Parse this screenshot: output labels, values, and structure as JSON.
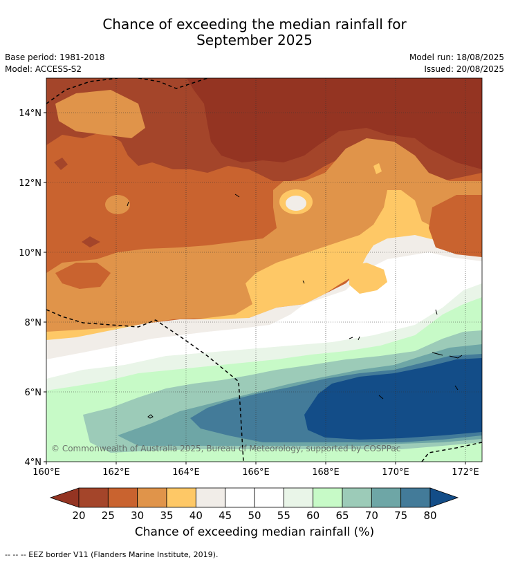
{
  "title_line1": "Chance of exceeding the median rainfall for",
  "title_line2": "September 2025",
  "base_period": "Base period: 1981-2018",
  "model": "Model: ACCESS-S2",
  "model_run": "Model run: 18/08/2025",
  "issued": "Issued: 20/08/2025",
  "copyright": "© Commonwealth of Australia 2025, Bureau of Meteorology, supported by COSPPac",
  "colorbar_label": "Chance of exceeding median rainfall (%)",
  "footnote": "--  --  -- EEZ border V11 (Flanders Marine Institute, 2019).",
  "lat_labels": [
    "14°N",
    "12°N",
    "10°N",
    "8°N",
    "6°N",
    "4°N"
  ],
  "lon_labels": [
    "160°E",
    "162°E",
    "164°E",
    "166°E",
    "168°E",
    "170°E",
    "172°E"
  ],
  "colorbar": {
    "ticks": [
      "20",
      "25",
      "30",
      "35",
      "40",
      "45",
      "50",
      "55",
      "60",
      "65",
      "70",
      "75",
      "80"
    ],
    "colors": [
      "#a4452a",
      "#c9632f",
      "#e0944a",
      "#fec866",
      "#f1ede8",
      "#ffffff",
      "#ffffff",
      "#e9f5e8",
      "#c7fac7",
      "#9ccbb8",
      "#6ea6a6",
      "#437b99"
    ],
    "under_color": "#943422",
    "over_color": "#134d88"
  },
  "map_colors": {
    "c20": "#943422",
    "c25": "#a4452a",
    "c30": "#c9632f",
    "c35": "#e0944a",
    "c40": "#fec866",
    "c45": "#f1ede8",
    "c50": "#ffffff",
    "c55": "#e9f5e8",
    "c60": "#c7fac7",
    "c65": "#9ccbb8",
    "c70": "#6ea6a6",
    "c75": "#437b99",
    "c80": "#134d88"
  }
}
